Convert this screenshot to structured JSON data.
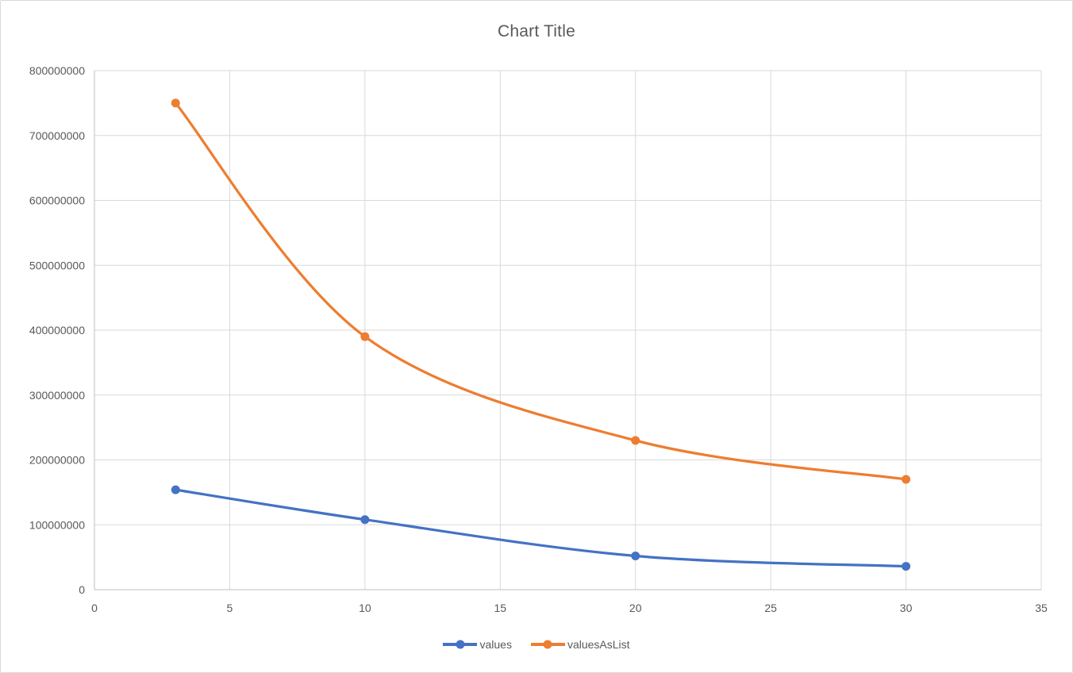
{
  "chart": {
    "title": "Chart Title"
  },
  "chart_data": {
    "type": "line",
    "title": "Chart Title",
    "x": [
      3,
      10,
      20,
      30
    ],
    "series": [
      {
        "name": "values",
        "color": "#4472C4",
        "values": [
          154000000,
          108000000,
          52000000,
          36000000
        ]
      },
      {
        "name": "valuesAsList",
        "color": "#ED7D31",
        "values": [
          750000000,
          390000000,
          230000000,
          170000000
        ]
      }
    ],
    "xlabel": "",
    "ylabel": "",
    "xlim": [
      0,
      35
    ],
    "ylim": [
      0,
      800000000
    ],
    "x_ticks": [
      0,
      5,
      10,
      15,
      20,
      25,
      30,
      35
    ],
    "y_ticks": [
      0,
      100000000,
      200000000,
      300000000,
      400000000,
      500000000,
      600000000,
      700000000,
      800000000
    ],
    "grid": true,
    "smooth": true,
    "marker": "circle",
    "legend_position": "bottom",
    "colors": {
      "grid": "#D9D9D9",
      "axis": "#BFBFBF",
      "tick_text": "#595959",
      "title_text": "#595959",
      "frame_border": "#D9D9D9",
      "background": "#FFFFFF"
    }
  }
}
